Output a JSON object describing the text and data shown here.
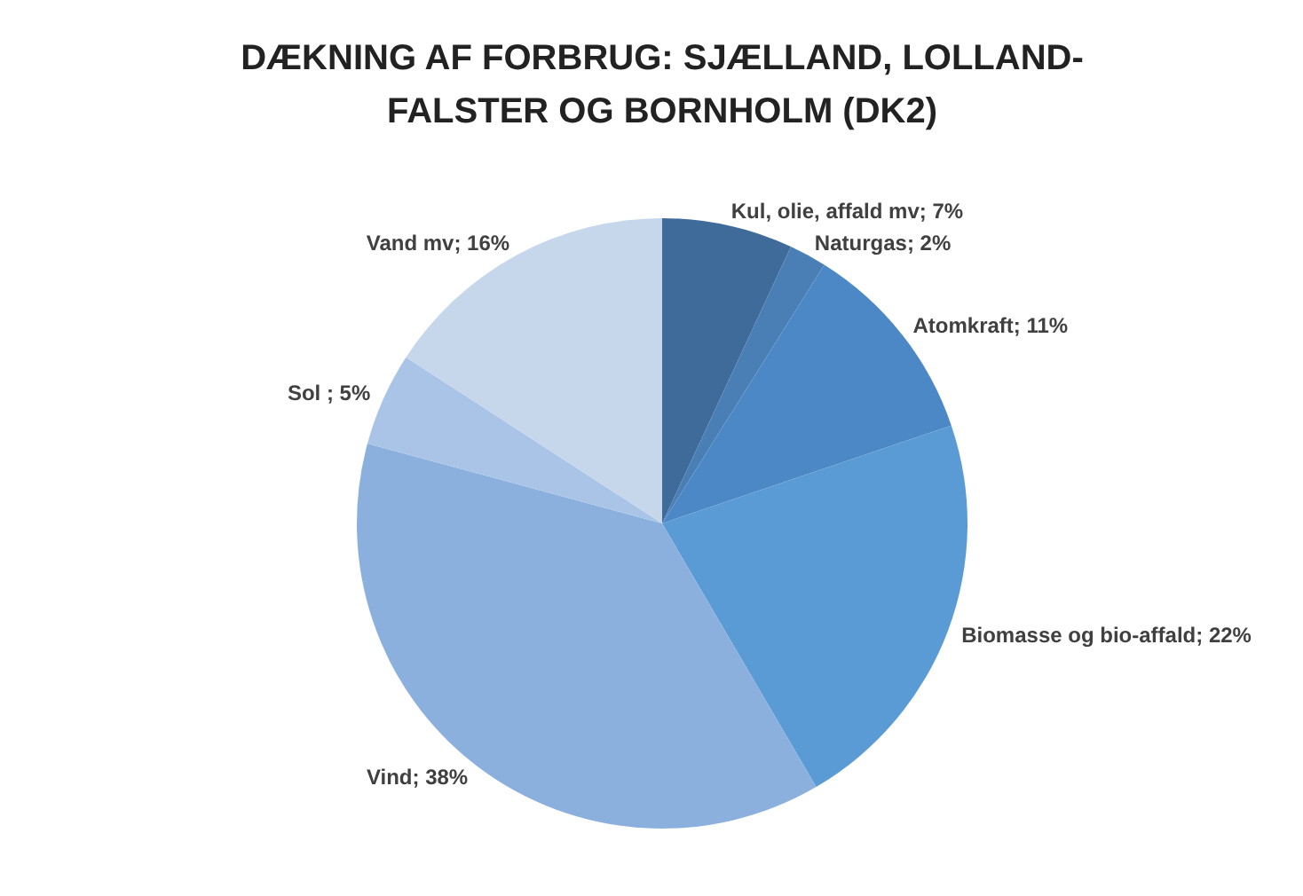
{
  "chart_data": {
    "type": "pie",
    "title": "DÆKNING AF FORBRUG: SJÆLLAND, LOLLAND-FALSTER OG BORNHOLM (DK2)",
    "categories": [
      "Kul, olie, affald mv",
      "Naturgas",
      "Atomkraft",
      "Biomasse og bio-affald",
      "Vind",
      "Sol ",
      "Vand mv"
    ],
    "values": [
      7,
      2,
      11,
      22,
      38,
      5,
      16
    ],
    "value_labels": [
      "7%",
      "2%",
      "11%",
      "22%",
      "38%",
      "5%",
      "16%"
    ],
    "colors": [
      "#3f6b9b",
      "#4a7fb6",
      "#4d88c6",
      "#5b9bd5",
      "#8cb0dd",
      "#a9c4e6",
      "#c6d7ec"
    ],
    "legend": false
  }
}
